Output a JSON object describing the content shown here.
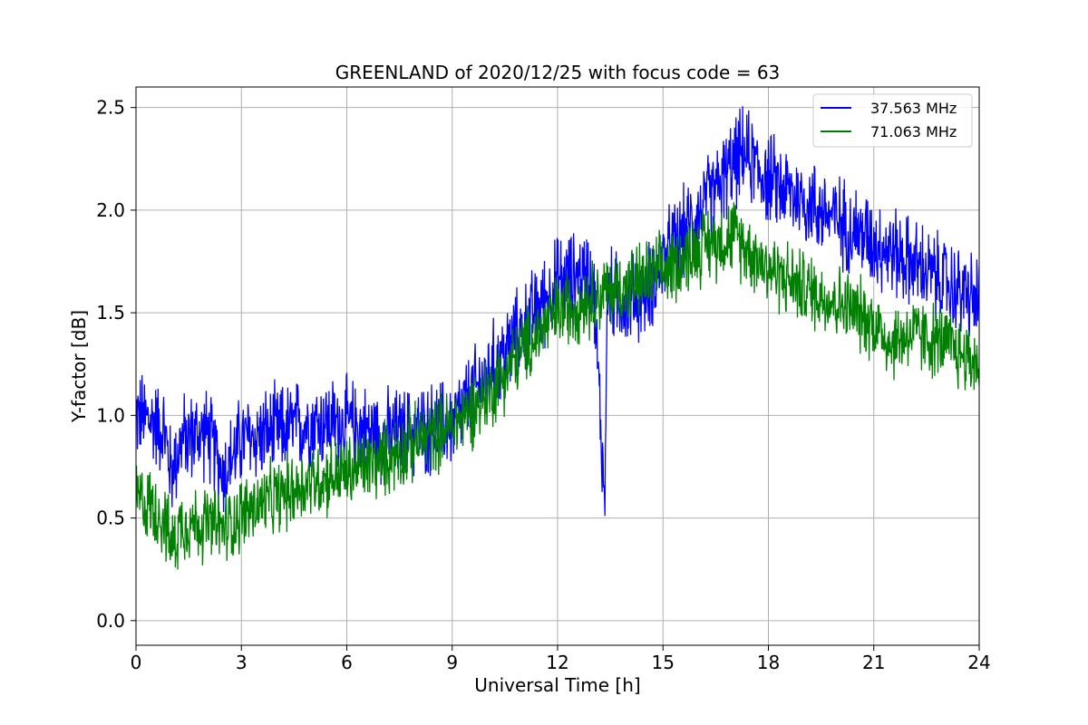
{
  "chart_data": {
    "type": "line",
    "title": "GREENLAND of 2020/12/25 with focus code = 63",
    "xlabel": "Universal Time [h]",
    "ylabel": "Y-factor [dB]",
    "xlim": [
      0,
      24
    ],
    "ylim": [
      -0.12,
      2.6
    ],
    "xticks": [
      0,
      3,
      6,
      9,
      12,
      15,
      18,
      21,
      24
    ],
    "yticks": [
      0.0,
      0.5,
      1.0,
      1.5,
      2.0,
      2.5
    ],
    "xtick_labels": [
      "0",
      "3",
      "6",
      "9",
      "12",
      "15",
      "18",
      "21",
      "24"
    ],
    "ytick_labels": [
      "0.0",
      "0.5",
      "1.0",
      "1.5",
      "2.0",
      "2.5"
    ],
    "grid": true,
    "legend_position": "top-right",
    "series": [
      {
        "name": "37.563 MHz",
        "color": "#0000ff",
        "noise_amplitude": 0.18,
        "x": [
          0,
          0.5,
          0.8,
          1.0,
          1.3,
          2.0,
          2.5,
          3,
          4,
          5,
          6,
          7,
          8,
          9,
          10,
          11,
          12,
          13,
          13.35,
          13.4,
          13.45,
          14,
          14.5,
          15,
          16,
          17,
          17.3,
          18,
          19,
          20,
          21,
          22,
          23,
          24
        ],
        "y": [
          1.0,
          0.97,
          0.93,
          0.72,
          0.88,
          0.92,
          0.72,
          0.88,
          0.92,
          0.97,
          0.96,
          0.9,
          0.92,
          0.96,
          1.2,
          1.42,
          1.65,
          1.7,
          0.55,
          1.55,
          1.6,
          1.55,
          1.6,
          1.75,
          1.98,
          2.22,
          2.28,
          2.15,
          2.05,
          1.95,
          1.85,
          1.75,
          1.65,
          1.55
        ]
      },
      {
        "name": "71.063 MHz",
        "color": "#008000",
        "noise_amplitude": 0.15,
        "x": [
          0,
          0.5,
          0.8,
          1.0,
          1.3,
          2.0,
          2.5,
          3,
          4,
          5,
          6,
          7,
          8,
          9,
          10,
          11,
          12,
          13,
          14,
          15,
          16,
          17,
          18,
          19,
          20,
          21,
          21.5,
          22,
          23,
          24
        ],
        "y": [
          0.6,
          0.55,
          0.5,
          0.35,
          0.48,
          0.47,
          0.45,
          0.52,
          0.6,
          0.68,
          0.72,
          0.78,
          0.87,
          0.95,
          1.1,
          1.32,
          1.5,
          1.58,
          1.63,
          1.7,
          1.82,
          1.88,
          1.72,
          1.62,
          1.55,
          1.45,
          1.35,
          1.4,
          1.35,
          1.25
        ]
      }
    ]
  }
}
